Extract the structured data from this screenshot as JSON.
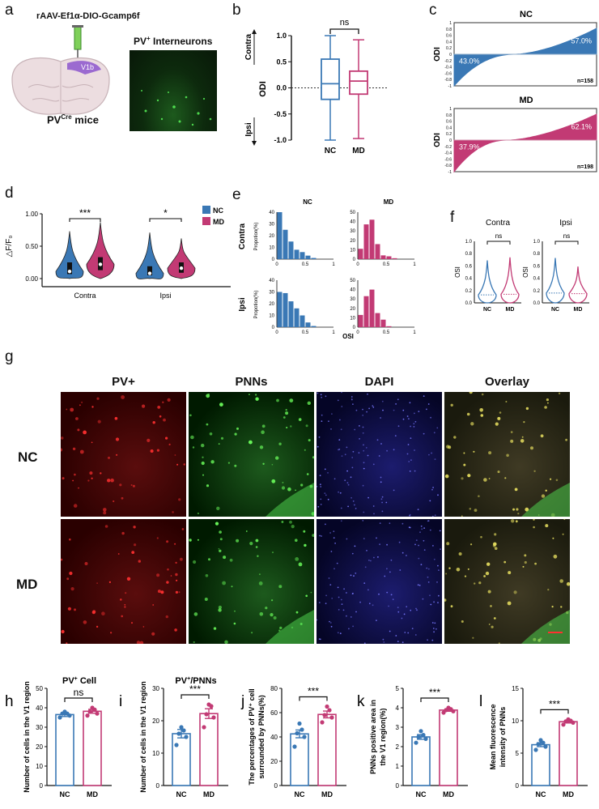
{
  "colors": {
    "nc": "#3a78b5",
    "md": "#c23a74",
    "bar_bg": "#ffffff",
    "brain": "#e8d8dc",
    "v1": "#9b6ad0"
  },
  "panel_a": {
    "label": "a",
    "virus": "rAAV-Ef1α-DIO-Gcamp6f",
    "roi_label": "V1b",
    "mouse_prefix": "PV",
    "mouse_sup": "Cre",
    "mouse_suffix": " mice",
    "img_title_prefix": "PV",
    "img_title_sup": "+",
    "img_title_suffix": " Interneurons"
  },
  "panel_b": {
    "label": "b",
    "ylabel": "ODI",
    "contra": "Contra",
    "ipsi": "Ipsi",
    "sig": "ns",
    "categories": [
      "NC",
      "MD"
    ],
    "yticks": [
      "1.0",
      "0.5",
      "0.0",
      "-0.5",
      "-1.0"
    ]
  },
  "panel_c": {
    "label": "c",
    "ylabel": "ODI",
    "nc": {
      "title": "NC",
      "neg_pct": "43.0%",
      "pos_pct": "57.0%",
      "n": "n=158"
    },
    "md": {
      "title": "MD",
      "neg_pct": "37.9%",
      "pos_pct": "62.1%",
      "n": "n=198"
    },
    "yticks": [
      "1",
      "0.8",
      "0.6",
      "0.4",
      "0.2",
      "0",
      "-0.2",
      "-0.4",
      "-0.6",
      "-0.8",
      "-1"
    ]
  },
  "panel_d": {
    "label": "d",
    "ylabel": "△F/F₀",
    "yticks": [
      "1.00",
      "0.50",
      "0.00"
    ],
    "categories": [
      "Contra",
      "Ipsi"
    ],
    "sig": [
      "***",
      "*"
    ],
    "legend": [
      "NC",
      "MD"
    ]
  },
  "panel_e": {
    "label": "e",
    "titles": [
      "NC",
      "MD"
    ],
    "row_labels": [
      "Contra",
      "Ipsi"
    ],
    "ylabel": "Propotion(%)",
    "xlabel": "OSI",
    "yticks_nc": [
      "40",
      "30",
      "20",
      "10",
      "0"
    ],
    "yticks_md": [
      "50",
      "40",
      "30",
      "20",
      "10",
      "0"
    ],
    "xticks": [
      "0",
      "0.5",
      "1"
    ]
  },
  "panel_f": {
    "label": "f",
    "titles": [
      "Contra",
      "Ipsi"
    ],
    "ylabel": "OSI",
    "sig": [
      "ns",
      "ns"
    ],
    "categories": [
      "NC",
      "MD"
    ],
    "yticks": [
      "1.0",
      "0.8",
      "0.6",
      "0.4",
      "0.2",
      "0.0"
    ]
  },
  "panel_g": {
    "label": "g",
    "columns": [
      "PV+",
      "PNNs",
      "DAPI",
      "Overlay"
    ],
    "rows": [
      "NC",
      "MD"
    ]
  },
  "panels_bottom": [
    {
      "label": "h",
      "title_main": "PV",
      "title_sup": "+",
      "title_tail": " Cell",
      "ylabel1": "Number of cells in the V1 region",
      "ylabel2": "",
      "sig": "ns",
      "yticks": [
        "50",
        "40",
        "30",
        "20",
        "10",
        "0"
      ]
    },
    {
      "label": "i",
      "title_main": "PV",
      "title_sup": "+",
      "title_tail": "/PNNs",
      "ylabel1": "Number of cells in the V1 region",
      "ylabel2": "",
      "sig": "***",
      "yticks": [
        "30",
        "20",
        "10",
        "0"
      ]
    },
    {
      "label": "j",
      "title_main": "",
      "title_sup": "",
      "title_tail": "",
      "ylabel1": "The percentages of PV⁺ cell",
      "ylabel2": "surrounded by PNNs(%)",
      "sig": "***",
      "yticks": [
        "80",
        "60",
        "40",
        "20",
        "0"
      ]
    },
    {
      "label": "k",
      "title_main": "",
      "title_sup": "",
      "title_tail": "",
      "ylabel1": "PNNs positive area in",
      "ylabel2": "the V1 region(%)",
      "sig": "***",
      "yticks": [
        "5",
        "4",
        "3",
        "2",
        "1",
        "0"
      ]
    },
    {
      "label": "l",
      "title_main": "",
      "title_sup": "",
      "title_tail": "",
      "ylabel1": "Mean fluorescence",
      "ylabel2": "intensity of PNNs",
      "sig": "***",
      "yticks": [
        "15",
        "10",
        "5",
        "0"
      ]
    }
  ],
  "bottom_categories": [
    "NC",
    "MD"
  ],
  "chart_data": [
    {
      "type": "box",
      "panel": "b",
      "categories": [
        "NC",
        "MD"
      ],
      "ylim": [
        -1,
        1
      ],
      "series": [
        {
          "name": "NC",
          "min": -1.0,
          "q1": -0.22,
          "median": 0.08,
          "q3": 0.55,
          "max": 1.0
        },
        {
          "name": "MD",
          "min": -0.97,
          "q1": -0.12,
          "median": 0.13,
          "q3": 0.32,
          "max": 0.92
        }
      ]
    },
    {
      "type": "area",
      "panel": "c-NC",
      "ylim": [
        -1,
        1
      ],
      "n": 158,
      "neg_fraction": 0.43
    },
    {
      "type": "area",
      "panel": "c-MD",
      "ylim": [
        -1,
        1
      ],
      "n": 198,
      "neg_fraction": 0.379
    },
    {
      "type": "violin",
      "panel": "d",
      "categories": [
        "Contra",
        "Ipsi"
      ],
      "ylim": [
        0,
        1
      ],
      "series": [
        {
          "name": "NC",
          "median": [
            0.11,
            0.08
          ],
          "q1": [
            0.07,
            0.05
          ],
          "q3": [
            0.25,
            0.19
          ],
          "max": [
            0.73,
            0.71
          ],
          "min": [
            0.0,
            0.0
          ]
        },
        {
          "name": "MD",
          "median": [
            0.22,
            0.16
          ],
          "q1": [
            0.13,
            0.09
          ],
          "q3": [
            0.33,
            0.25
          ],
          "max": [
            0.87,
            0.62
          ],
          "min": [
            0.0,
            0.0
          ]
        }
      ]
    },
    {
      "type": "bar",
      "panel": "e-Contra-NC",
      "x": [
        0.05,
        0.15,
        0.25,
        0.35,
        0.45,
        0.55,
        0.65
      ],
      "values": [
        41,
        25,
        15,
        8,
        6,
        3,
        1
      ],
      "ylim": [
        0,
        40
      ]
    },
    {
      "type": "bar",
      "panel": "e-Contra-MD",
      "x": [
        0.05,
        0.15,
        0.25,
        0.35,
        0.45,
        0.55,
        0.65
      ],
      "values": [
        11,
        37,
        42,
        16,
        4,
        3,
        1
      ],
      "ylim": [
        0,
        50
      ]
    },
    {
      "type": "bar",
      "panel": "e-Ipsi-NC",
      "x": [
        0.05,
        0.15,
        0.25,
        0.35,
        0.45,
        0.55,
        0.65
      ],
      "values": [
        30,
        29,
        22,
        16,
        10,
        4,
        1
      ],
      "ylim": [
        0,
        40
      ]
    },
    {
      "type": "bar",
      "panel": "e-Ipsi-MD",
      "x": [
        0.05,
        0.15,
        0.25,
        0.35,
        0.45,
        0.55,
        0.65
      ],
      "values": [
        13,
        33,
        40,
        15,
        8,
        1,
        0
      ],
      "ylim": [
        0,
        50
      ]
    },
    {
      "type": "violin",
      "panel": "f-Contra",
      "categories": [
        "NC",
        "MD"
      ],
      "ylim": [
        0,
        1
      ],
      "series": [
        {
          "name": "NC",
          "median": 0.13,
          "max": 0.69
        },
        {
          "name": "MD",
          "median": 0.14,
          "max": 0.74
        }
      ]
    },
    {
      "type": "violin",
      "panel": "f-Ipsi",
      "categories": [
        "NC",
        "MD"
      ],
      "ylim": [
        0,
        1
      ],
      "series": [
        {
          "name": "NC",
          "median": 0.16,
          "max": 0.73
        },
        {
          "name": "MD",
          "median": 0.15,
          "max": 0.59
        }
      ]
    },
    {
      "type": "bar",
      "panel": "h",
      "categories": [
        "NC",
        "MD"
      ],
      "ylim": [
        0,
        50
      ],
      "values": [
        36.5,
        38.2
      ],
      "sem": [
        1.0,
        1.0
      ],
      "points": [
        [
          35,
          36,
          37,
          37,
          38
        ],
        [
          36,
          37,
          38,
          39,
          40
        ]
      ]
    },
    {
      "type": "bar",
      "panel": "i",
      "categories": [
        "NC",
        "MD"
      ],
      "ylim": [
        0,
        30
      ],
      "values": [
        16.0,
        22.2
      ],
      "sem": [
        1.3,
        1.5
      ],
      "points": [
        [
          12.5,
          15,
          16,
          17,
          18
        ],
        [
          18,
          21,
          22,
          24.5,
          25
        ]
      ]
    },
    {
      "type": "bar",
      "panel": "j",
      "categories": [
        "NC",
        "MD"
      ],
      "ylim": [
        0,
        80
      ],
      "values": [
        42.5,
        58.5
      ],
      "sem": [
        3.2,
        2.8
      ],
      "points": [
        [
          32,
          40,
          43,
          46,
          51
        ],
        [
          52,
          56,
          58,
          62,
          65
        ]
      ]
    },
    {
      "type": "bar",
      "panel": "k",
      "categories": [
        "NC",
        "MD"
      ],
      "ylim": [
        0,
        5
      ],
      "values": [
        2.5,
        3.88
      ],
      "sem": [
        0.12,
        0.06
      ],
      "points": [
        [
          2.2,
          2.4,
          2.5,
          2.6,
          2.8
        ],
        [
          3.75,
          3.82,
          3.88,
          3.93,
          4.0
        ]
      ]
    },
    {
      "type": "bar",
      "panel": "l",
      "categories": [
        "NC",
        "MD"
      ],
      "ylim": [
        0,
        15
      ],
      "values": [
        6.3,
        9.85
      ],
      "sem": [
        0.3,
        0.2
      ],
      "points": [
        [
          5.5,
          6.0,
          6.4,
          6.6,
          7.0
        ],
        [
          9.4,
          9.7,
          9.9,
          10.0,
          10.2
        ]
      ]
    }
  ]
}
